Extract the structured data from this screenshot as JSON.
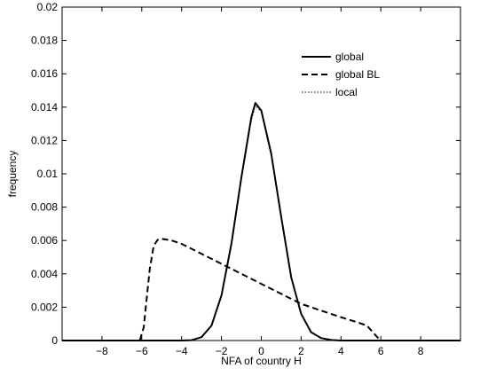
{
  "chart_data": {
    "type": "line",
    "xlabel": "NFA of country H",
    "ylabel": "frequency",
    "xlim": [
      -10,
      10
    ],
    "ylim": [
      0,
      0.02
    ],
    "xticks": [
      -8,
      -6,
      -4,
      -2,
      0,
      2,
      4,
      6,
      8
    ],
    "xtick_labels": [
      "−8",
      "−6",
      "−4",
      "−2",
      "0",
      "2",
      "4",
      "6",
      "8"
    ],
    "yticks": [
      0,
      0.002,
      0.004,
      0.006,
      0.008,
      0.01,
      0.012,
      0.014,
      0.016,
      0.018,
      0.02
    ],
    "ytick_labels": [
      "0",
      "0.002",
      "0.004",
      "0.006",
      "0.008",
      "0.01",
      "0.012",
      "0.014",
      "0.016",
      "0.018",
      "0.02"
    ],
    "grid": false,
    "legend_position": "top-right",
    "series": [
      {
        "name": "global",
        "style": "solid",
        "color": "#000000",
        "x": [
          -10,
          -5,
          -4,
          -3.5,
          -3,
          -2.5,
          -2,
          -1.5,
          -1,
          -0.5,
          -0.3,
          0,
          0.5,
          1,
          1.5,
          2,
          2.5,
          3,
          3.5,
          4,
          10
        ],
        "y": [
          0,
          0,
          0,
          2e-05,
          0.0002,
          0.0009,
          0.0027,
          0.0058,
          0.0098,
          0.0134,
          0.01425,
          0.0138,
          0.0112,
          0.0074,
          0.0038,
          0.0016,
          0.0005,
          0.00015,
          3e-05,
          0,
          0
        ]
      },
      {
        "name": "global BL",
        "style": "dashed",
        "color": "#000000",
        "x": [
          -10,
          -6.1,
          -5.9,
          -5.8,
          -5.6,
          -5.4,
          -5.2,
          -5,
          -4.5,
          -4,
          -3,
          -2,
          -1,
          0,
          1,
          2,
          3,
          4,
          4.8,
          5.3,
          5.6,
          5.9,
          6,
          10
        ],
        "y": [
          0,
          0,
          0.0008,
          0.002,
          0.0043,
          0.0057,
          0.00605,
          0.0061,
          0.006,
          0.0058,
          0.0052,
          0.0046,
          0.004,
          0.0034,
          0.0028,
          0.0022,
          0.0018,
          0.0014,
          0.0011,
          0.0009,
          0.0005,
          0.0001,
          0,
          0
        ]
      },
      {
        "name": "local",
        "style": "dotted",
        "color": "#000000",
        "x": [
          -10,
          -5,
          -4,
          -3.5,
          -3,
          -2.5,
          -2,
          -1.5,
          -1,
          -0.5,
          -0.3,
          0,
          0.5,
          1,
          1.5,
          2,
          2.5,
          3,
          3.5,
          4,
          10
        ],
        "y": [
          0,
          0,
          0,
          2e-05,
          0.0002,
          0.0009,
          0.0027,
          0.0058,
          0.0097,
          0.0132,
          0.0141,
          0.0137,
          0.0111,
          0.0073,
          0.0038,
          0.0016,
          0.0005,
          0.00015,
          3e-05,
          0,
          0
        ]
      }
    ]
  }
}
